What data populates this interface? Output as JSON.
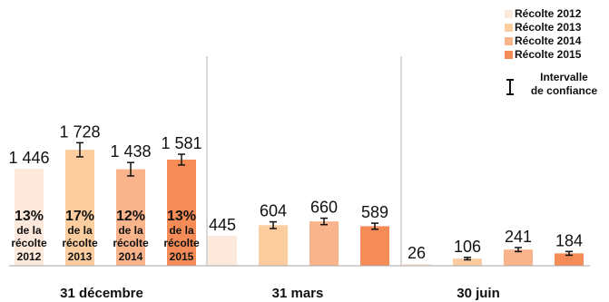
{
  "legend": {
    "series": [
      {
        "name": "Récolte 2012",
        "color": "#fce9dc"
      },
      {
        "name": "Récolte 2013",
        "color": "#fbcd9f"
      },
      {
        "name": "Récolte 2014",
        "color": "#f9b48c"
      },
      {
        "name": "Récolte 2015",
        "color": "#f58c58"
      }
    ],
    "ci_label_line1": "Intervalle",
    "ci_label_line2": "de confiance"
  },
  "chart_data": {
    "type": "bar",
    "categories": [
      "31 décembre",
      "31 mars",
      "30 juin"
    ],
    "series": [
      {
        "name": "Récolte 2012",
        "values": [
          1446,
          445,
          26
        ],
        "labels": [
          "1 446",
          "445",
          "26"
        ],
        "ci_half": [
          0,
          0,
          0
        ]
      },
      {
        "name": "Récolte 2013",
        "values": [
          1728,
          604,
          106
        ],
        "labels": [
          "1 728",
          "604",
          "106"
        ],
        "ci_half": [
          105,
          50,
          18
        ]
      },
      {
        "name": "Récolte 2014",
        "values": [
          1438,
          660,
          241
        ],
        "labels": [
          "1 438",
          "660",
          "241"
        ],
        "ci_half": [
          100,
          48,
          30
        ]
      },
      {
        "name": "Récolte 2015",
        "values": [
          1581,
          589,
          184
        ],
        "labels": [
          "1 581",
          "589",
          "184"
        ],
        "ci_half": [
          80,
          45,
          28
        ]
      }
    ],
    "shares": [
      {
        "percent": "13%",
        "line1": "de la",
        "line2": "récolte",
        "year": "2012"
      },
      {
        "percent": "17%",
        "line1": "de la",
        "line2": "récolte",
        "year": "2013"
      },
      {
        "percent": "12%",
        "line1": "de la",
        "line2": "récolte",
        "year": "2014"
      },
      {
        "percent": "13%",
        "line1": "de la",
        "line2": "récolte",
        "year": "2015"
      }
    ],
    "ylim": [
      0,
      2100
    ],
    "title": "",
    "xlabel": "",
    "ylabel": "",
    "legend_position": "top-right",
    "grid": false
  }
}
